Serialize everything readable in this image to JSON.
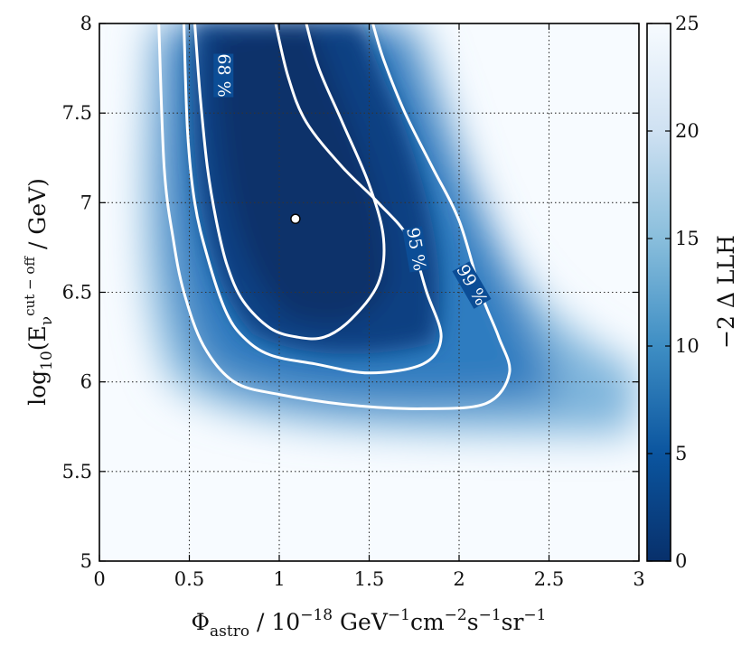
{
  "chart_data": {
    "type": "heatmap",
    "title": "",
    "xlabel": {
      "symbol": "Φ",
      "sub": "astro",
      "rest_1": " / 10",
      "rest_1_sup": "−18",
      "rest_2": " GeV",
      "rest_2_sup": "−1",
      "rest_3": "cm",
      "rest_3_sup": "−2",
      "rest_4": "s",
      "rest_4_sup": "−1",
      "rest_5": "sr",
      "rest_5_sup": "−1"
    },
    "ylabel": {
      "prefix": "log",
      "sub": "10",
      "open": "(E",
      "e_sub": "ν",
      "e_sup": "cut − off",
      "rest": " / GeV)"
    },
    "xlim": [
      0,
      3
    ],
    "ylim": [
      5,
      8
    ],
    "x_ticks": [
      {
        "value": 0,
        "label": "0"
      },
      {
        "value": 0.5,
        "label": "0.5"
      },
      {
        "value": 1,
        "label": "1"
      },
      {
        "value": 1.5,
        "label": "1.5"
      },
      {
        "value": 2,
        "label": "2"
      },
      {
        "value": 2.5,
        "label": "2.5"
      },
      {
        "value": 3,
        "label": "3"
      }
    ],
    "y_ticks": [
      {
        "value": 5,
        "label": "5"
      },
      {
        "value": 5.5,
        "label": "5.5"
      },
      {
        "value": 6,
        "label": "6"
      },
      {
        "value": 6.5,
        "label": "6.5"
      },
      {
        "value": 7,
        "label": "7"
      },
      {
        "value": 7.5,
        "label": "7.5"
      },
      {
        "value": 8,
        "label": "8"
      }
    ],
    "grid": true,
    "colormap": "Blues_r",
    "colorbar": {
      "label": "−2 Δ LLH",
      "range": [
        0,
        25
      ],
      "ticks": [
        {
          "value": 0,
          "label": "0"
        },
        {
          "value": 5,
          "label": "5"
        },
        {
          "value": 10,
          "label": "10"
        },
        {
          "value": 15,
          "label": "15"
        },
        {
          "value": 20,
          "label": "20"
        },
        {
          "value": 25,
          "label": "25"
        }
      ]
    },
    "best_fit": {
      "x": 1.09,
      "y": 6.91
    },
    "contours": [
      {
        "label": "68 %",
        "label_at": {
          "x": 0.69,
          "y": 7.71
        },
        "label_angle_deg": 90,
        "points": [
          [
            0.53,
            8.0
          ],
          [
            0.56,
            7.6
          ],
          [
            0.6,
            7.2
          ],
          [
            0.65,
            6.9
          ],
          [
            0.71,
            6.65
          ],
          [
            0.8,
            6.45
          ],
          [
            0.95,
            6.3
          ],
          [
            1.1,
            6.25
          ],
          [
            1.25,
            6.25
          ],
          [
            1.4,
            6.35
          ],
          [
            1.55,
            6.55
          ],
          [
            1.58,
            6.8
          ],
          [
            1.5,
            7.1
          ],
          [
            1.35,
            7.45
          ],
          [
            1.22,
            7.75
          ],
          [
            1.15,
            8.0
          ]
        ]
      },
      {
        "label": "95 %",
        "label_at": {
          "x": 1.76,
          "y": 6.74
        },
        "label_angle_deg": 80,
        "points": [
          [
            0.98,
            8.0
          ],
          [
            1.05,
            7.7
          ],
          [
            1.15,
            7.45
          ],
          [
            1.35,
            7.2
          ],
          [
            1.55,
            7.0
          ],
          [
            1.72,
            6.8
          ],
          [
            1.82,
            6.5
          ],
          [
            1.9,
            6.25
          ],
          [
            1.8,
            6.1
          ],
          [
            1.5,
            6.05
          ],
          [
            1.2,
            6.1
          ],
          [
            0.95,
            6.15
          ],
          [
            0.8,
            6.25
          ],
          [
            0.7,
            6.4
          ],
          [
            0.6,
            6.7
          ],
          [
            0.53,
            7.0
          ],
          [
            0.49,
            7.4
          ],
          [
            0.47,
            8.0
          ]
        ]
      },
      {
        "label": "99 %",
        "label_at": {
          "x": 2.07,
          "y": 6.54
        },
        "label_angle_deg": 60,
        "points": [
          [
            1.52,
            8.0
          ],
          [
            1.58,
            7.8
          ],
          [
            1.7,
            7.5
          ],
          [
            1.85,
            7.2
          ],
          [
            2.0,
            6.9
          ],
          [
            2.12,
            6.5
          ],
          [
            2.22,
            6.25
          ],
          [
            2.28,
            6.05
          ],
          [
            2.15,
            5.88
          ],
          [
            1.8,
            5.85
          ],
          [
            1.4,
            5.87
          ],
          [
            1.0,
            5.93
          ],
          [
            0.75,
            6.0
          ],
          [
            0.58,
            6.2
          ],
          [
            0.47,
            6.5
          ],
          [
            0.41,
            6.8
          ],
          [
            0.36,
            7.2
          ],
          [
            0.33,
            8.0
          ]
        ]
      }
    ]
  }
}
